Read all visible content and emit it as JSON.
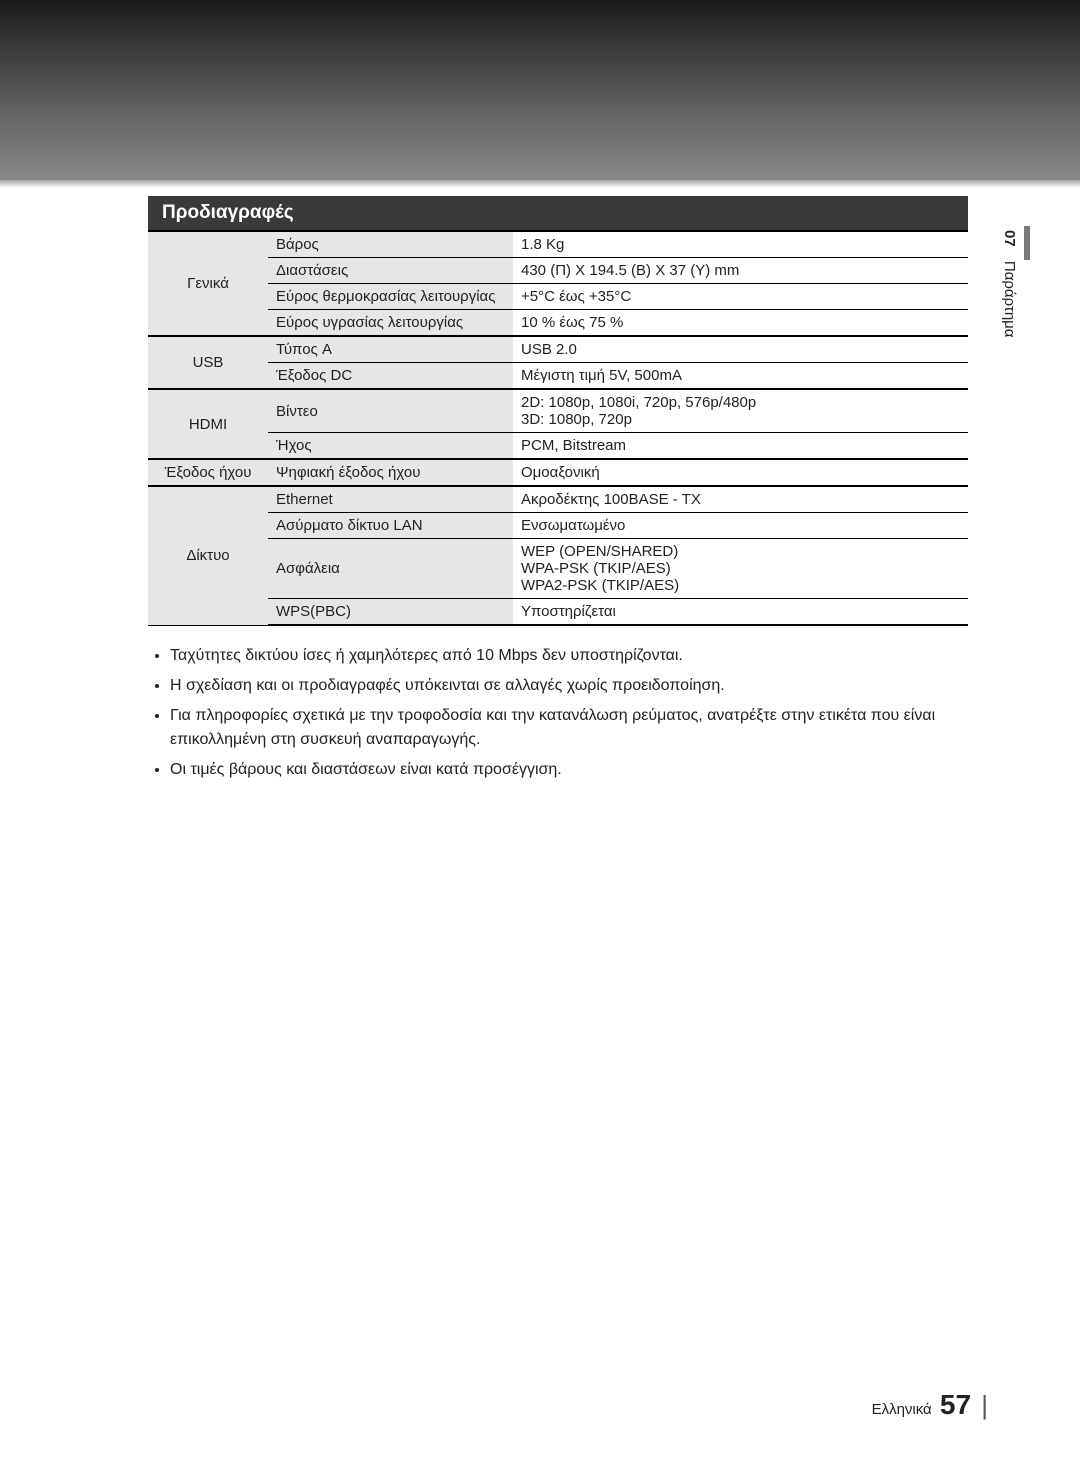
{
  "section_title": "Προδιαγραφές",
  "sidebar": {
    "chapter_num": "07",
    "chapter_label": "Παράρτημα"
  },
  "table": {
    "groups": [
      {
        "cat": "Γενικά",
        "rows": [
          {
            "attr": "Βάρος",
            "val": "1.8 Kg"
          },
          {
            "attr": "Διαστάσεις",
            "val": "430 (Π) X 194.5 (Β) X 37 (Υ) mm"
          },
          {
            "attr": "Εύρος θερμοκρασίας λειτουργίας",
            "val": "+5°C έως +35°C"
          },
          {
            "attr": "Εύρος υγρασίας λειτουργίας",
            "val": "10 % έως 75 %"
          }
        ]
      },
      {
        "cat": "USB",
        "rows": [
          {
            "attr": "Τύπος A",
            "val": "USB 2.0"
          },
          {
            "attr": "Έξοδος DC",
            "val": "Μέγιστη τιμή 5V, 500mA"
          }
        ]
      },
      {
        "cat": "HDMI",
        "rows": [
          {
            "attr": "Βίντεο",
            "val": "2D: 1080p, 1080i, 720p, 576p/480p\n3D: 1080p, 720p"
          },
          {
            "attr": "Ήχος",
            "val": "PCM, Bitstream"
          }
        ]
      },
      {
        "cat": "Έξοδος ήχου",
        "rows": [
          {
            "attr": "Ψηφιακή έξοδος ήχου",
            "val": "Ομοαξονική"
          }
        ]
      },
      {
        "cat": "Δίκτυο",
        "rows": [
          {
            "attr": "Ethernet",
            "val": "Ακροδέκτης 100BASE - TX"
          },
          {
            "attr": "Ασύρματο δίκτυο LAN",
            "val": "Ενσωματωμένο"
          },
          {
            "attr": "Ασφάλεια",
            "val": "WEP (OPEN/SHARED)\nWPA-PSK (TKIP/AES)\nWPA2-PSK (TKIP/AES)"
          },
          {
            "attr": "WPS(PBC)",
            "val": "Υποστηρίζεται"
          }
        ]
      }
    ]
  },
  "notes": [
    "Ταχύτητες δικτύου ίσες ή χαμηλότερες από 10 Mbps δεν υποστηρίζονται.",
    "Η σχεδίαση και οι προδιαγραφές υπόκεινται σε αλλαγές χωρίς προειδοποίηση.",
    "Για πληροφορίες σχετικά με την τροφοδοσία και την κατανάλωση ρεύματος, ανατρέξτε στην ετικέτα που είναι επικολλημένη στη συσκευή αναπαραγωγής.",
    "Οι τιμές βάρους και διαστάσεων είναι κατά προσέγγιση."
  ],
  "footer": {
    "lang": "Ελληνικά",
    "page": "57"
  },
  "colors": {
    "header_bg": "#3a3a3a",
    "cell_shade": "#e6e6e6",
    "border": "#000000",
    "text": "#222222"
  }
}
